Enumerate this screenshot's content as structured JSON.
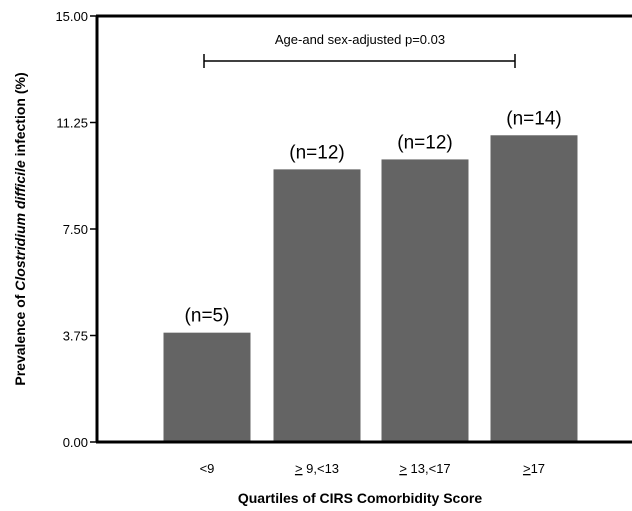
{
  "chart_data": {
    "type": "bar",
    "categories": [
      "<9",
      "> 9,<13",
      "> 13,<17",
      ">17"
    ],
    "category_parts": [
      {
        "underlined": "",
        "rest": "<9"
      },
      {
        "underlined": ">",
        "rest": " 9,<13"
      },
      {
        "underlined": ">",
        "rest": " 13,<17"
      },
      {
        "underlined": ">",
        "rest": "17"
      }
    ],
    "values": [
      3.85,
      9.6,
      9.95,
      10.8
    ],
    "data_labels": [
      "(n=5)",
      "(n=12)",
      "(n=12)",
      "(n=14)"
    ],
    "xlabel": "Quartiles of CIRS Comorbidity Score",
    "ylabel_parts": [
      "Prevalence of ",
      "Clostridium difficile",
      " infection (%)"
    ],
    "ylim": [
      0,
      15
    ],
    "yticks": [
      "0.00",
      "3.75",
      "7.50",
      "11.25",
      "15.00"
    ],
    "ytick_values": [
      0,
      3.75,
      7.5,
      11.25,
      15
    ],
    "annotation": "Age-and sex-adjusted p=0.03",
    "bar_color": "#646464",
    "grid": false
  }
}
